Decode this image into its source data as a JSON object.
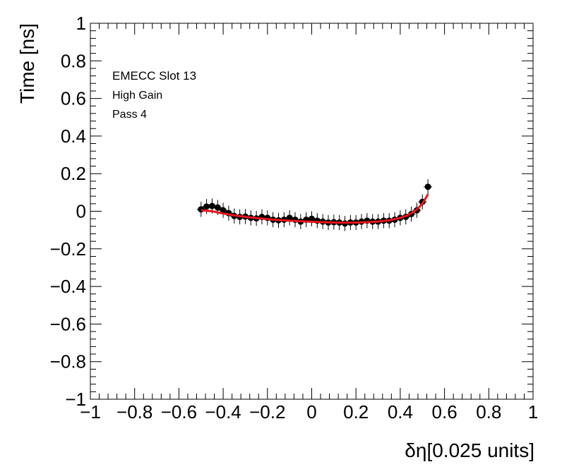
{
  "chart_data": {
    "type": "scatter",
    "title": "",
    "xlabel": "δη[0.025 units]",
    "ylabel": "Time [ns]",
    "xlim": [
      -1,
      1
    ],
    "ylim": [
      -1,
      1
    ],
    "x_ticks": [
      -1,
      -0.8,
      -0.6,
      -0.4,
      -0.2,
      0,
      0.2,
      0.4,
      0.6,
      0.8,
      1
    ],
    "y_ticks": [
      -1,
      -0.8,
      -0.6,
      -0.4,
      -0.2,
      0,
      0.2,
      0.4,
      0.6,
      0.8,
      1
    ],
    "x_tick_labels": [
      "−1",
      "−0.8",
      "−0.6",
      "−0.4",
      "−0.2",
      "0",
      "0.2",
      "0.4",
      "0.6",
      "0.8",
      "1"
    ],
    "y_tick_labels": [
      "−1",
      "−0.8",
      "−0.6",
      "−0.4",
      "−0.2",
      "0",
      "0.2",
      "0.4",
      "0.6",
      "0.8",
      "1"
    ],
    "annotations": [
      "EMECC Slot 13",
      "High Gain",
      "Pass 4"
    ],
    "grid": false,
    "series": [
      {
        "kind": "points_with_errors",
        "color": "#000000",
        "x": [
          -0.5,
          -0.475,
          -0.45,
          -0.425,
          -0.4,
          -0.375,
          -0.35,
          -0.325,
          -0.3,
          -0.275,
          -0.25,
          -0.225,
          -0.2,
          -0.175,
          -0.15,
          -0.125,
          -0.1,
          -0.075,
          -0.05,
          -0.025,
          0.0,
          0.025,
          0.05,
          0.075,
          0.1,
          0.125,
          0.15,
          0.175,
          0.2,
          0.225,
          0.25,
          0.275,
          0.3,
          0.325,
          0.35,
          0.375,
          0.4,
          0.425,
          0.45,
          0.475,
          0.5,
          0.525
        ],
        "y": [
          0.01,
          0.025,
          0.028,
          0.02,
          0.005,
          -0.01,
          -0.025,
          -0.03,
          -0.028,
          -0.035,
          -0.038,
          -0.03,
          -0.035,
          -0.045,
          -0.048,
          -0.045,
          -0.035,
          -0.045,
          -0.055,
          -0.045,
          -0.04,
          -0.05,
          -0.055,
          -0.06,
          -0.058,
          -0.06,
          -0.065,
          -0.06,
          -0.06,
          -0.055,
          -0.05,
          -0.055,
          -0.055,
          -0.05,
          -0.05,
          -0.045,
          -0.035,
          -0.03,
          -0.015,
          0.005,
          0.05,
          0.13
        ],
        "yerr": [
          0.04,
          0.04,
          0.04,
          0.04,
          0.04,
          0.04,
          0.04,
          0.04,
          0.04,
          0.04,
          0.04,
          0.04,
          0.04,
          0.04,
          0.04,
          0.04,
          0.04,
          0.04,
          0.04,
          0.04,
          0.04,
          0.04,
          0.04,
          0.04,
          0.04,
          0.04,
          0.04,
          0.04,
          0.04,
          0.04,
          0.04,
          0.04,
          0.04,
          0.04,
          0.04,
          0.04,
          0.04,
          0.04,
          0.04,
          0.04,
          0.04,
          0.04
        ]
      },
      {
        "kind": "fit_line",
        "color": "#e8141c",
        "x": [
          -0.5,
          -0.45,
          -0.4,
          -0.35,
          -0.3,
          -0.25,
          -0.2,
          -0.15,
          -0.1,
          -0.05,
          0.0,
          0.05,
          0.1,
          0.15,
          0.2,
          0.25,
          0.3,
          0.35,
          0.4,
          0.425,
          0.45,
          0.475,
          0.5,
          0.525
        ],
        "y": [
          0.005,
          0.0,
          -0.012,
          -0.022,
          -0.03,
          -0.036,
          -0.042,
          -0.047,
          -0.05,
          -0.053,
          -0.056,
          -0.058,
          -0.06,
          -0.061,
          -0.06,
          -0.058,
          -0.055,
          -0.048,
          -0.035,
          -0.025,
          -0.01,
          0.01,
          0.04,
          0.09
        ]
      }
    ]
  }
}
